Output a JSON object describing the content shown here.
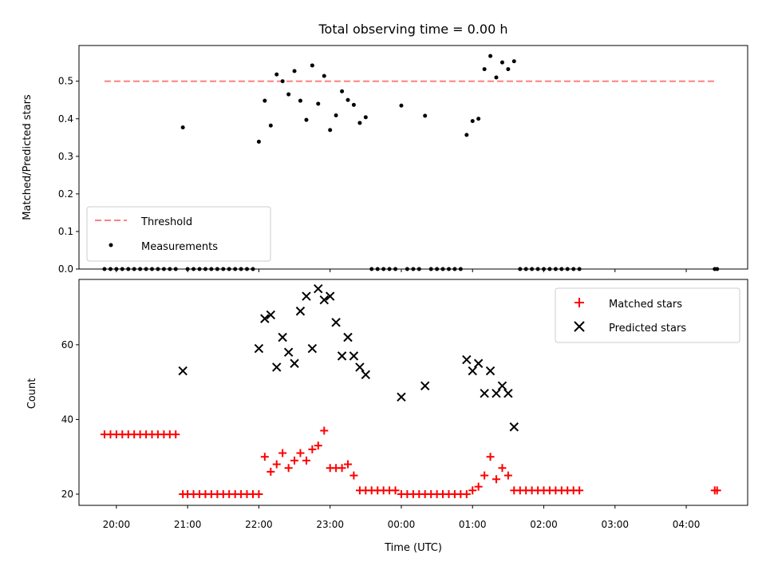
{
  "chart_data": [
    {
      "type": "scatter",
      "title": "Total observing time = 0.00 h",
      "xlabel": "",
      "ylabel": "Matched/Predicted stars",
      "xlim_hours": [
        19.475,
        28.862
      ],
      "ylim": [
        0,
        0.595
      ],
      "yticks": [
        0.0,
        0.1,
        0.2,
        0.3,
        0.4,
        0.5
      ],
      "ytick_labels": [
        "0.0",
        "0.1",
        "0.2",
        "0.3",
        "0.4",
        "0.5"
      ],
      "legend_position": "lower-left",
      "threshold": {
        "name": "Threshold",
        "value": 0.5,
        "x_start_hours": 19.833,
        "x_end_hours": 28.417,
        "color": "#ff8080"
      },
      "series": [
        {
          "name": "Measurements",
          "color": "#000000",
          "x_hours": [
            19.833,
            19.917,
            20.0,
            20.083,
            20.167,
            20.25,
            20.333,
            20.417,
            20.5,
            20.583,
            20.667,
            20.75,
            20.833,
            20.933,
            21.0,
            21.083,
            21.167,
            21.25,
            21.333,
            21.417,
            21.5,
            21.583,
            21.667,
            21.75,
            21.833,
            21.917,
            22.0,
            22.083,
            22.167,
            22.25,
            22.333,
            22.417,
            22.5,
            22.583,
            22.667,
            22.75,
            22.833,
            22.917,
            23.0,
            23.083,
            23.167,
            23.25,
            23.333,
            23.417,
            23.5,
            23.583,
            23.667,
            23.75,
            23.833,
            23.917,
            24.0,
            24.083,
            24.167,
            24.25,
            24.333,
            24.417,
            24.5,
            24.583,
            24.667,
            24.75,
            24.833,
            24.917,
            25.0,
            25.083,
            25.167,
            25.25,
            25.333,
            25.417,
            25.5,
            25.583,
            25.667,
            25.75,
            25.833,
            25.917,
            26.0,
            26.083,
            26.167,
            26.25,
            26.333,
            26.417,
            26.5,
            28.4,
            28.433
          ],
          "y": [
            0.0,
            0.0,
            0.0,
            0.0,
            0.0,
            0.0,
            0.0,
            0.0,
            0.0,
            0.0,
            0.0,
            0.0,
            0.0,
            0.377,
            0.0,
            0.0,
            0.0,
            0.0,
            0.0,
            0.0,
            0.0,
            0.0,
            0.0,
            0.0,
            0.0,
            0.0,
            0.339,
            0.448,
            0.382,
            0.518,
            0.5,
            0.465,
            0.527,
            0.448,
            0.397,
            0.542,
            0.44,
            0.514,
            0.37,
            0.409,
            0.473,
            0.45,
            0.437,
            0.389,
            0.404,
            0.0,
            0.0,
            0.0,
            0.0,
            0.0,
            0.435,
            0.0,
            0.0,
            0.0,
            0.408,
            0.0,
            0.0,
            0.0,
            0.0,
            0.0,
            0.0,
            0.357,
            0.394,
            0.4,
            0.532,
            0.567,
            0.51,
            0.55,
            0.532,
            0.553,
            0.0,
            0.0,
            0.0,
            0.0,
            0.0,
            0.0,
            0.0,
            0.0,
            0.0,
            0.0,
            0.0,
            0.0,
            0.0
          ]
        }
      ]
    },
    {
      "type": "scatter",
      "title": "",
      "xlabel": "Time (UTC)",
      "ylabel": "Count",
      "xlim_hours": [
        19.475,
        28.862
      ],
      "ylim": [
        17,
        77.5
      ],
      "yticks": [
        20,
        40,
        60
      ],
      "ytick_labels": [
        "20",
        "40",
        "60"
      ],
      "xticks_hours": [
        20,
        21,
        22,
        23,
        24,
        25,
        26,
        27,
        28
      ],
      "xtick_labels": [
        "20:00",
        "21:00",
        "22:00",
        "23:00",
        "00:00",
        "01:00",
        "02:00",
        "03:00",
        "04:00"
      ],
      "legend_position": "upper-right",
      "series": [
        {
          "name": "Matched stars",
          "color": "#ff0000",
          "marker": "plus",
          "x_hours": [
            19.833,
            19.917,
            20.0,
            20.083,
            20.167,
            20.25,
            20.333,
            20.417,
            20.5,
            20.583,
            20.667,
            20.75,
            20.833,
            20.933,
            21.0,
            21.083,
            21.167,
            21.25,
            21.333,
            21.417,
            21.5,
            21.583,
            21.667,
            21.75,
            21.833,
            21.917,
            22.0,
            22.083,
            22.167,
            22.25,
            22.333,
            22.417,
            22.5,
            22.583,
            22.667,
            22.75,
            22.833,
            22.917,
            23.0,
            23.083,
            23.167,
            23.25,
            23.333,
            23.417,
            23.5,
            23.583,
            23.667,
            23.75,
            23.833,
            23.917,
            24.0,
            24.083,
            24.167,
            24.25,
            24.333,
            24.417,
            24.5,
            24.583,
            24.667,
            24.75,
            24.833,
            24.917,
            25.0,
            25.083,
            25.167,
            25.25,
            25.333,
            25.417,
            25.5,
            25.583,
            25.667,
            25.75,
            25.833,
            25.917,
            26.0,
            26.083,
            26.167,
            26.25,
            26.333,
            26.417,
            26.5,
            28.4,
            28.433
          ],
          "y": [
            36,
            36,
            36,
            36,
            36,
            36,
            36,
            36,
            36,
            36,
            36,
            36,
            36,
            20,
            20,
            20,
            20,
            20,
            20,
            20,
            20,
            20,
            20,
            20,
            20,
            20,
            20,
            30,
            26,
            28,
            31,
            27,
            29,
            31,
            29,
            32,
            33,
            37,
            27,
            27,
            27,
            28,
            25,
            21,
            21,
            21,
            21,
            21,
            21,
            21,
            20,
            20,
            20,
            20,
            20,
            20,
            20,
            20,
            20,
            20,
            20,
            20,
            21,
            22,
            25,
            30,
            24,
            27,
            25,
            21,
            21,
            21,
            21,
            21,
            21,
            21,
            21,
            21,
            21,
            21,
            21,
            21,
            21
          ]
        },
        {
          "name": "Predicted stars",
          "color": "#000000",
          "marker": "x",
          "x_hours": [
            20.933,
            22.0,
            22.083,
            22.167,
            22.25,
            22.333,
            22.417,
            22.5,
            22.583,
            22.667,
            22.75,
            22.833,
            22.917,
            23.0,
            23.083,
            23.167,
            23.25,
            23.333,
            23.417,
            23.5,
            24.0,
            24.333,
            24.917,
            25.0,
            25.083,
            25.167,
            25.25,
            25.333,
            25.417,
            25.5,
            25.583
          ],
          "y": [
            53,
            59,
            67,
            68,
            54,
            62,
            58,
            55,
            69,
            73,
            59,
            75,
            72,
            73,
            66,
            57,
            62,
            57,
            54,
            52,
            46,
            49,
            56,
            53,
            55,
            47,
            53,
            47,
            49,
            47,
            38
          ]
        }
      ]
    }
  ]
}
